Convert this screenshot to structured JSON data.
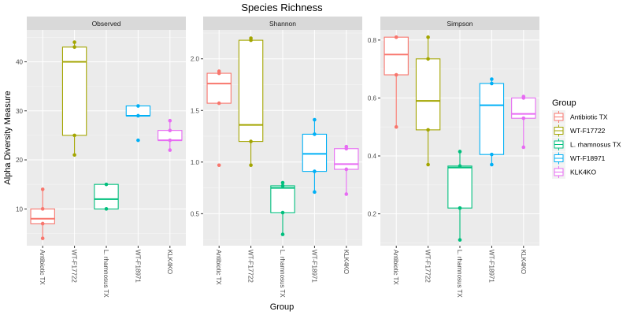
{
  "chart_data": {
    "type": "boxplot",
    "title": "Species Richness",
    "xlabel": "Group",
    "ylabel": "Alpha Diversity Measure",
    "categories": [
      "Antibiotic TX",
      "WT-F17722",
      "L. rhamnosus TX",
      "WT-F18971",
      "KLK4KO"
    ],
    "legend": {
      "title": "Group",
      "position": "right",
      "entries": [
        "Antibiotic TX",
        "WT-F17722",
        "L. rhamnosus TX",
        "WT-F18971",
        "KLK4KO"
      ]
    },
    "colors": {
      "Antibiotic TX": "#f8766d",
      "WT-F17722": "#a3a500",
      "L. rhamnosus TX": "#00bf7d",
      "WT-F18971": "#00b0f6",
      "KLK4KO": "#e76bf3"
    },
    "grid": true,
    "facets": [
      {
        "label": "Observed",
        "ylim": [
          2.5,
          46.5
        ],
        "yticks": [
          10,
          20,
          30,
          40
        ],
        "ytick_labels": [
          "10",
          "20",
          "30",
          "40"
        ],
        "boxes": [
          {
            "group": "Antibiotic TX",
            "q1": 7,
            "median": 8,
            "q3": 10,
            "whisker_low": 4,
            "whisker_high": 14,
            "points": [
              4,
              7,
              10,
              14
            ]
          },
          {
            "group": "WT-F17722",
            "q1": 25,
            "median": 40,
            "q3": 43,
            "whisker_low": 21,
            "whisker_high": 44,
            "points": [
              21,
              25,
              43,
              44
            ]
          },
          {
            "group": "L. rhamnosus TX",
            "q1": 10,
            "median": 12,
            "q3": 15,
            "whisker_low": 10,
            "whisker_high": 15,
            "points": [
              10,
              15
            ]
          },
          {
            "group": "WT-F18971",
            "q1": 29,
            "median": 29,
            "q3": 31,
            "whisker_low": 29,
            "whisker_high": 31,
            "points": [
              24,
              29,
              31
            ]
          },
          {
            "group": "KLK4KO",
            "q1": 24,
            "median": 24,
            "q3": 26,
            "whisker_low": 22,
            "whisker_high": 28,
            "points": [
              22,
              24,
              26,
              28
            ]
          }
        ]
      },
      {
        "label": "Shannon",
        "ylim": [
          0.19,
          2.28
        ],
        "yticks": [
          0.5,
          1.0,
          1.5,
          2.0
        ],
        "ytick_labels": [
          "0.5",
          "1.0",
          "1.5",
          "2.0"
        ],
        "boxes": [
          {
            "group": "Antibiotic TX",
            "q1": 1.57,
            "median": 1.76,
            "q3": 1.86,
            "whisker_low": 1.57,
            "whisker_high": 1.88,
            "points": [
              0.97,
              1.57,
              1.86,
              1.88
            ]
          },
          {
            "group": "WT-F17722",
            "q1": 1.2,
            "median": 1.36,
            "q3": 2.18,
            "whisker_low": 0.97,
            "whisker_high": 2.2,
            "points": [
              0.97,
              1.2,
              2.18,
              2.2
            ]
          },
          {
            "group": "L. rhamnosus TX",
            "q1": 0.51,
            "median": 0.75,
            "q3": 0.77,
            "whisker_low": 0.3,
            "whisker_high": 0.8,
            "points": [
              0.3,
              0.51,
              0.77,
              0.8
            ]
          },
          {
            "group": "WT-F18971",
            "q1": 0.91,
            "median": 1.08,
            "q3": 1.27,
            "whisker_low": 0.71,
            "whisker_high": 1.41,
            "points": [
              0.71,
              0.91,
              1.27,
              1.41
            ]
          },
          {
            "group": "KLK4KO",
            "q1": 0.93,
            "median": 0.98,
            "q3": 1.13,
            "whisker_low": 0.69,
            "whisker_high": 1.15,
            "points": [
              0.69,
              0.93,
              1.13,
              1.15
            ]
          }
        ]
      },
      {
        "label": "Simpson",
        "ylim": [
          0.09,
          0.835
        ],
        "yticks": [
          0.2,
          0.4,
          0.6,
          0.8
        ],
        "ytick_labels": [
          "0.2",
          "0.4",
          "0.6",
          "0.8"
        ],
        "boxes": [
          {
            "group": "Antibiotic TX",
            "q1": 0.68,
            "median": 0.75,
            "q3": 0.81,
            "whisker_low": 0.5,
            "whisker_high": 0.81,
            "points": [
              0.5,
              0.68,
              0.81
            ]
          },
          {
            "group": "WT-F17722",
            "q1": 0.49,
            "median": 0.59,
            "q3": 0.735,
            "whisker_low": 0.37,
            "whisker_high": 0.81,
            "points": [
              0.37,
              0.49,
              0.735,
              0.81
            ]
          },
          {
            "group": "L. rhamnosus TX",
            "q1": 0.22,
            "median": 0.36,
            "q3": 0.365,
            "whisker_low": 0.11,
            "whisker_high": 0.415,
            "points": [
              0.11,
              0.22,
              0.365,
              0.415
            ]
          },
          {
            "group": "WT-F18971",
            "q1": 0.405,
            "median": 0.575,
            "q3": 0.65,
            "whisker_low": 0.37,
            "whisker_high": 0.665,
            "points": [
              0.37,
              0.405,
              0.65,
              0.665
            ]
          },
          {
            "group": "KLK4KO",
            "q1": 0.53,
            "median": 0.545,
            "q3": 0.6,
            "whisker_low": 0.43,
            "whisker_high": 0.605,
            "points": [
              0.43,
              0.53,
              0.6,
              0.605
            ]
          }
        ]
      }
    ]
  }
}
